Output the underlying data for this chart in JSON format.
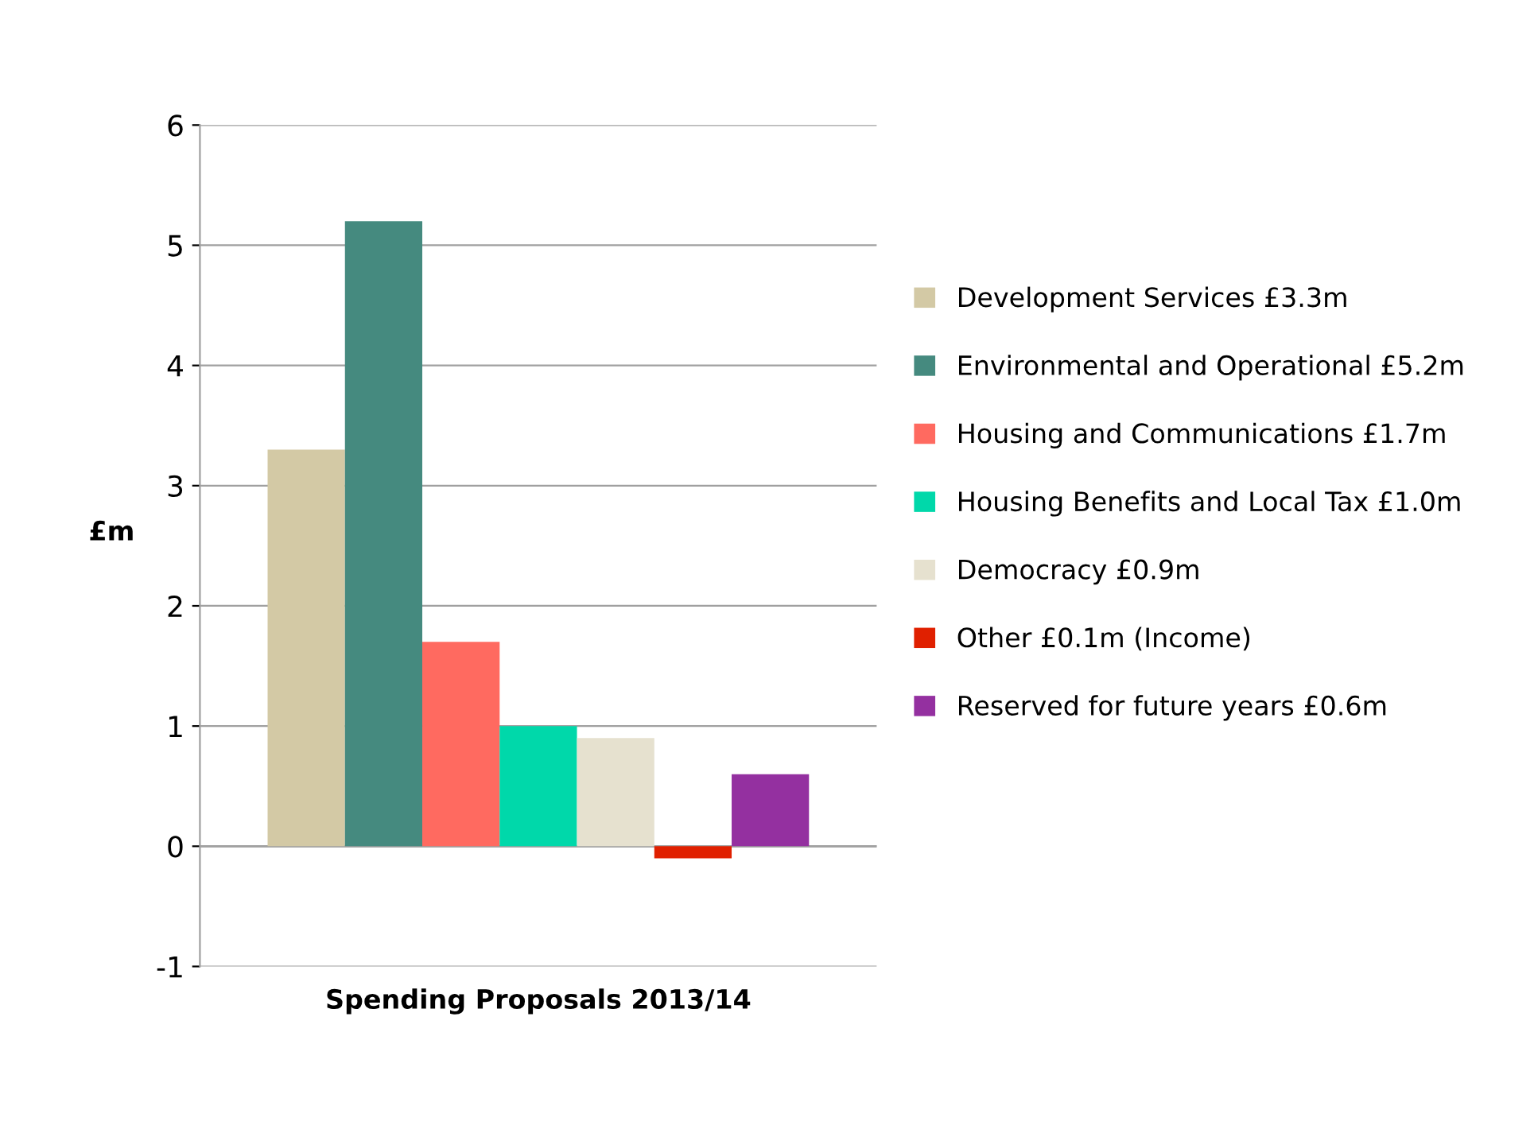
{
  "chart_data": {
    "type": "bar",
    "categories": [
      "Spending Proposals 2013/14"
    ],
    "ylabel": "£m",
    "ylim": [
      -1,
      6
    ],
    "yticks": [
      -1,
      0,
      1,
      2,
      3,
      4,
      5,
      6
    ],
    "grid": "y",
    "legend": "right",
    "series": [
      {
        "name": "Development Services £3.3m",
        "color": "#d3c9a5",
        "values": [
          3.3
        ]
      },
      {
        "name": "Environmental and Operational £5.2m",
        "color": "#458a7f",
        "values": [
          5.2
        ]
      },
      {
        "name": "Housing and Communications £1.7m",
        "color": "#ff6a60",
        "values": [
          1.7
        ]
      },
      {
        "name": "Housing Benefits and Local Tax £1.0m",
        "color": "#00d8aa",
        "values": [
          1.0
        ]
      },
      {
        "name": "Democracy £0.9m",
        "color": "#e6e1cf",
        "values": [
          0.9
        ]
      },
      {
        "name": "Other £0.1m (Income)",
        "color": "#e02000",
        "values": [
          -0.1
        ]
      },
      {
        "name": "Reserved for future years £0.6m",
        "color": "#9430a0",
        "values": [
          0.6
        ]
      }
    ]
  }
}
